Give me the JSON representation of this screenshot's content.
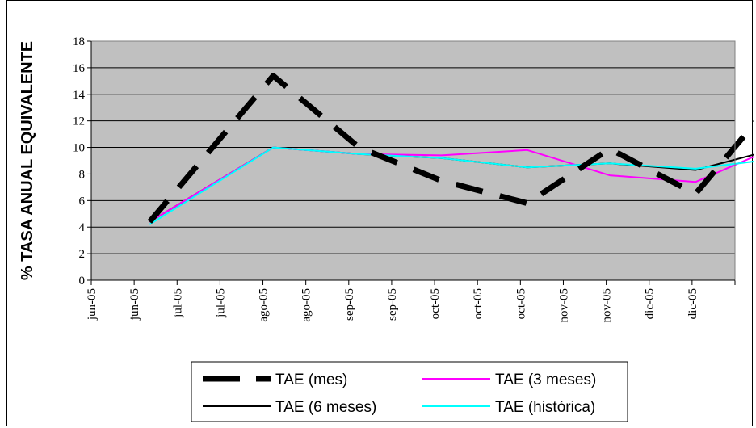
{
  "chart_data": {
    "type": "line",
    "ylabel": "% TASA ANUAL EQUIVALENTE",
    "ylim": [
      0,
      18
    ],
    "yticks": [
      0,
      2,
      4,
      6,
      8,
      10,
      12,
      14,
      16,
      18
    ],
    "xtick_labels": [
      "jun-05",
      "jun-05",
      "jul-05",
      "jul-05",
      "ago-05",
      "ago-05",
      "sep-05",
      "sep-05",
      "oct-05",
      "oct-05",
      "oct-05",
      "nov-05",
      "nov-05",
      "dic-05",
      "dic-05"
    ],
    "x_is_date": true,
    "grid": {
      "horizontal": true,
      "vertical": false
    },
    "plot_background": "#c0c0c0",
    "legend_position": "bottom",
    "series": [
      {
        "name": "TAE (mes)",
        "color": "#000000",
        "style": "dashed-thick",
        "x": [
          "2005-06-17",
          "2005-07-23",
          "2005-08-17",
          "2005-09-10",
          "2005-10-05",
          "2005-10-29",
          "2005-11-23",
          "2005-12-18"
        ],
        "y": [
          4.4,
          15.4,
          10.0,
          7.5,
          5.8,
          9.9,
          6.5,
          14.2
        ]
      },
      {
        "name": "TAE (3 meses)",
        "color": "#ff00ff",
        "style": "solid",
        "x": [
          "2005-06-17",
          "2005-07-23",
          "2005-08-17",
          "2005-09-10",
          "2005-10-05",
          "2005-10-29",
          "2005-11-23",
          "2005-12-18"
        ],
        "y": [
          4.4,
          10.0,
          9.5,
          9.4,
          9.8,
          7.9,
          7.4,
          10.2
        ]
      },
      {
        "name": "TAE (6 meses)",
        "color": "#000000",
        "style": "solid",
        "x": [
          "2005-06-17",
          "2005-07-23",
          "2005-08-17",
          "2005-09-10",
          "2005-10-05",
          "2005-10-29",
          "2005-11-23",
          "2005-12-18"
        ],
        "y": [
          4.4,
          10.0,
          9.5,
          9.2,
          8.5,
          8.8,
          8.3,
          10.0
        ]
      },
      {
        "name": "TAE (histórica)",
        "color": "#00ffff",
        "style": "solid",
        "x": [
          "2005-06-17",
          "2005-07-23",
          "2005-08-17",
          "2005-09-10",
          "2005-10-05",
          "2005-10-29",
          "2005-11-23",
          "2005-12-18"
        ],
        "y": [
          4.2,
          10.0,
          9.5,
          9.2,
          8.5,
          8.8,
          8.4,
          9.2
        ]
      }
    ]
  }
}
